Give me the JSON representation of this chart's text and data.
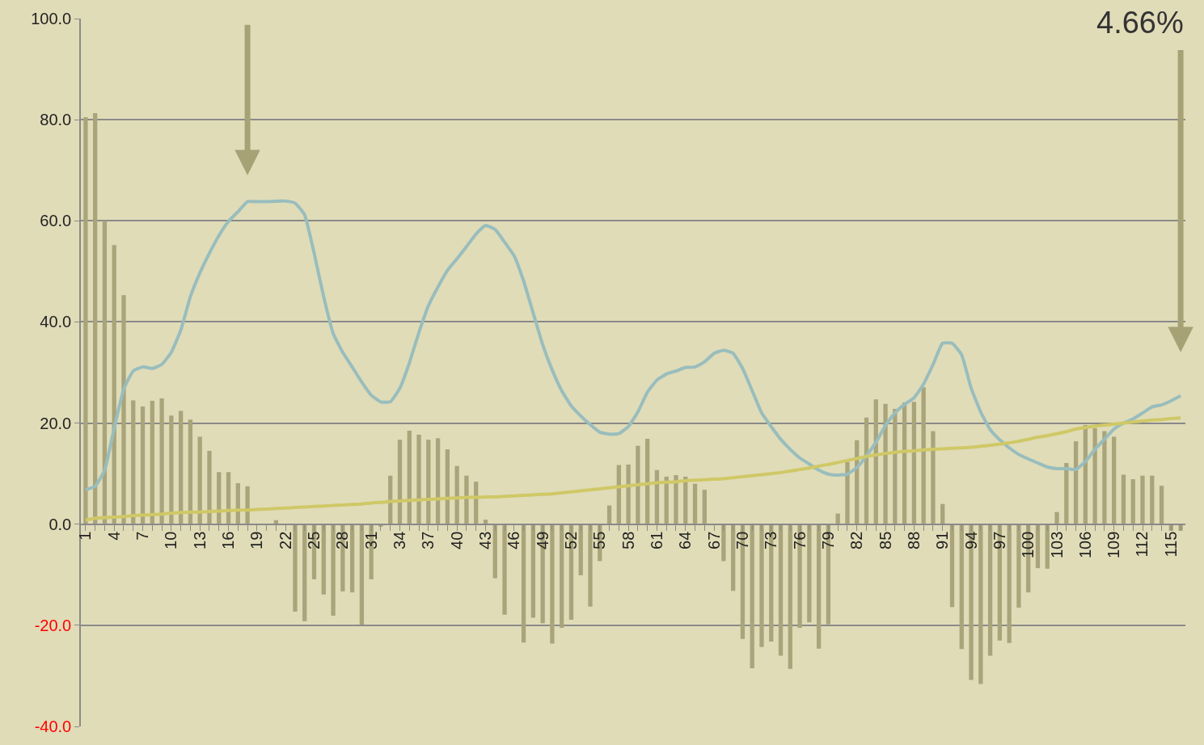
{
  "chart_data": {
    "type": "bar",
    "categories": [
      "1",
      null,
      null,
      "4",
      null,
      null,
      "7",
      null,
      null,
      "10",
      null,
      null,
      "13",
      null,
      null,
      "16",
      null,
      null,
      "19",
      null,
      null,
      "22",
      null,
      null,
      "25",
      null,
      null,
      "28",
      null,
      null,
      "31",
      null,
      null,
      "34",
      null,
      null,
      "37",
      null,
      null,
      "40",
      null,
      null,
      "43",
      null,
      null,
      "46",
      null,
      null,
      "49",
      null,
      null,
      "52",
      null,
      null,
      "55",
      null,
      null,
      "58",
      null,
      null,
      "61",
      null,
      null,
      "64",
      null,
      null,
      "67",
      null,
      null,
      "70",
      null,
      null,
      "73",
      null,
      null,
      "76",
      null,
      null,
      "79",
      null,
      null,
      "82",
      null,
      null,
      "85",
      null,
      null,
      "88",
      null,
      null,
      "91",
      null,
      null,
      "94",
      null,
      null,
      "97",
      null,
      null,
      "100",
      null,
      null,
      "103",
      null,
      null,
      "106",
      null,
      null,
      "109",
      null,
      null,
      "112",
      null,
      null,
      "115",
      null
    ],
    "series": [
      {
        "color": "#a9a47a",
        "values": [
          80.5,
          81.3,
          60.0,
          55.2,
          45.3,
          24.5,
          23.3,
          24.4,
          24.9,
          21.5,
          22.4,
          20.7,
          17.3,
          14.5,
          10.3,
          10.3,
          8.1,
          7.5,
          0,
          0,
          0.8,
          0,
          -17.3,
          -19.2,
          -10.9,
          -13.9,
          -18.1,
          -13.3,
          -13.5,
          -19.9,
          -10.9,
          -0.5,
          9.6,
          16.7,
          18.5,
          17.7,
          16.7,
          17.0,
          14.8,
          11.5,
          9.6,
          8.4,
          0.9,
          -10.7,
          -17.9,
          0,
          -23.4,
          -18.5,
          -19.6,
          -23.6,
          -20.5,
          -18.9,
          -10.1,
          -16.3,
          -7.3,
          3.7,
          11.7,
          11.8,
          15.5,
          16.9,
          10.7,
          9.4,
          9.7,
          9.4,
          8.0,
          6.8,
          0,
          -7.3,
          -13.2,
          -22.7,
          -28.5,
          -24.3,
          -23.2,
          -26.0,
          -28.6,
          -20.5,
          -19.4,
          -24.6,
          -19.8,
          2.1,
          12.3,
          16.6,
          21.1,
          24.7,
          23.8,
          22.8,
          24.1,
          24.2,
          27.1,
          18.4,
          4.0,
          -16.4,
          -24.7,
          -30.8,
          -31.6,
          -26.0,
          -23.0,
          -23.5,
          -16.5,
          -13.5,
          -8.7,
          -8.8,
          2.4,
          12.1,
          16.4,
          19.6,
          19.0,
          18.4,
          17.3,
          9.8,
          8.9,
          9.6,
          9.6,
          7.6,
          -1.3,
          -1.3
        ]
      },
      {
        "type": "line",
        "color": "#99bdbd",
        "values": [
          6.8,
          7.5,
          10.7,
          19.0,
          26.7,
          30.3,
          31.1,
          30.8,
          31.6,
          34.0,
          38.4,
          45.0,
          49.7,
          53.6,
          57.1,
          59.9,
          61.8,
          63.8,
          63.8,
          63.8,
          63.9,
          63.9,
          63.5,
          61.2,
          53.6,
          45.0,
          37.7,
          34.0,
          31.1,
          28.1,
          25.5,
          24.2,
          24.2,
          26.9,
          31.9,
          37.9,
          43.2,
          46.9,
          50.2,
          52.5,
          54.9,
          57.4,
          59.1,
          58.3,
          55.8,
          53.1,
          48.1,
          41.8,
          35.5,
          30.5,
          26.4,
          23.4,
          21.4,
          19.7,
          18.2,
          17.8,
          17.9,
          19.3,
          22.2,
          26.1,
          28.5,
          29.7,
          30.3,
          31.0,
          31.1,
          32.1,
          33.8,
          34.4,
          33.8,
          30.8,
          26.4,
          22.0,
          19.3,
          16.8,
          14.8,
          13.1,
          11.9,
          10.7,
          9.9,
          9.7,
          9.9,
          11.2,
          13.5,
          16.2,
          19.5,
          22.0,
          23.7,
          25.0,
          27.7,
          31.6,
          35.8,
          35.8,
          33.5,
          26.9,
          22.2,
          18.7,
          16.7,
          15.1,
          13.8,
          12.9,
          12.1,
          11.3,
          11.0,
          11.0,
          10.8,
          12.4,
          14.8,
          16.8,
          18.8,
          20.0,
          20.8,
          22.0,
          23.2,
          23.6,
          24.4,
          25.4
        ]
      },
      {
        "type": "line",
        "color": "#cfc866",
        "values": [
          0.8,
          1.2,
          1.3,
          1.4,
          1.5,
          1.7,
          1.8,
          1.9,
          2.0,
          2.2,
          2.3,
          2.4,
          2.4,
          2.5,
          2.6,
          2.7,
          2.8,
          2.8,
          2.9,
          3.0,
          3.1,
          3.2,
          3.3,
          3.4,
          3.5,
          3.6,
          3.7,
          3.8,
          3.9,
          4.0,
          4.2,
          4.3,
          4.5,
          4.6,
          4.7,
          4.8,
          4.9,
          5.0,
          5.1,
          5.2,
          5.3,
          5.3,
          5.4,
          5.4,
          5.5,
          5.6,
          5.7,
          5.8,
          5.9,
          6.0,
          6.2,
          6.4,
          6.6,
          6.8,
          7.0,
          7.2,
          7.4,
          7.6,
          7.8,
          8.0,
          8.2,
          8.3,
          8.4,
          8.6,
          8.7,
          8.8,
          8.9,
          9.0,
          9.2,
          9.4,
          9.6,
          9.8,
          10.0,
          10.2,
          10.5,
          10.8,
          11.1,
          11.5,
          11.8,
          12.2,
          12.6,
          13.0,
          13.4,
          13.7,
          14.0,
          14.2,
          14.4,
          14.5,
          14.7,
          14.8,
          14.9,
          15.0,
          15.1,
          15.2,
          15.4,
          15.6,
          15.8,
          16.1,
          16.4,
          16.8,
          17.2,
          17.5,
          17.9,
          18.3,
          18.8,
          19.1,
          19.4,
          19.6,
          19.8,
          20.0,
          20.2,
          20.4,
          20.6,
          20.7,
          20.9,
          21.0
        ]
      }
    ],
    "ylim": [
      -40,
      100
    ],
    "yticks": [
      {
        "value": -40,
        "label": "-40.0"
      },
      {
        "value": -20,
        "label": "-20.0"
      },
      {
        "value": 0,
        "label": "0.0"
      },
      {
        "value": 20,
        "label": "20.0"
      },
      {
        "value": 40,
        "label": "40.0"
      },
      {
        "value": 60,
        "label": "60.0"
      },
      {
        "value": 80,
        "label": "80.0"
      },
      {
        "value": 100,
        "label": "100.0"
      }
    ],
    "grid": "y",
    "annotations": [
      "4.66%"
    ]
  }
}
